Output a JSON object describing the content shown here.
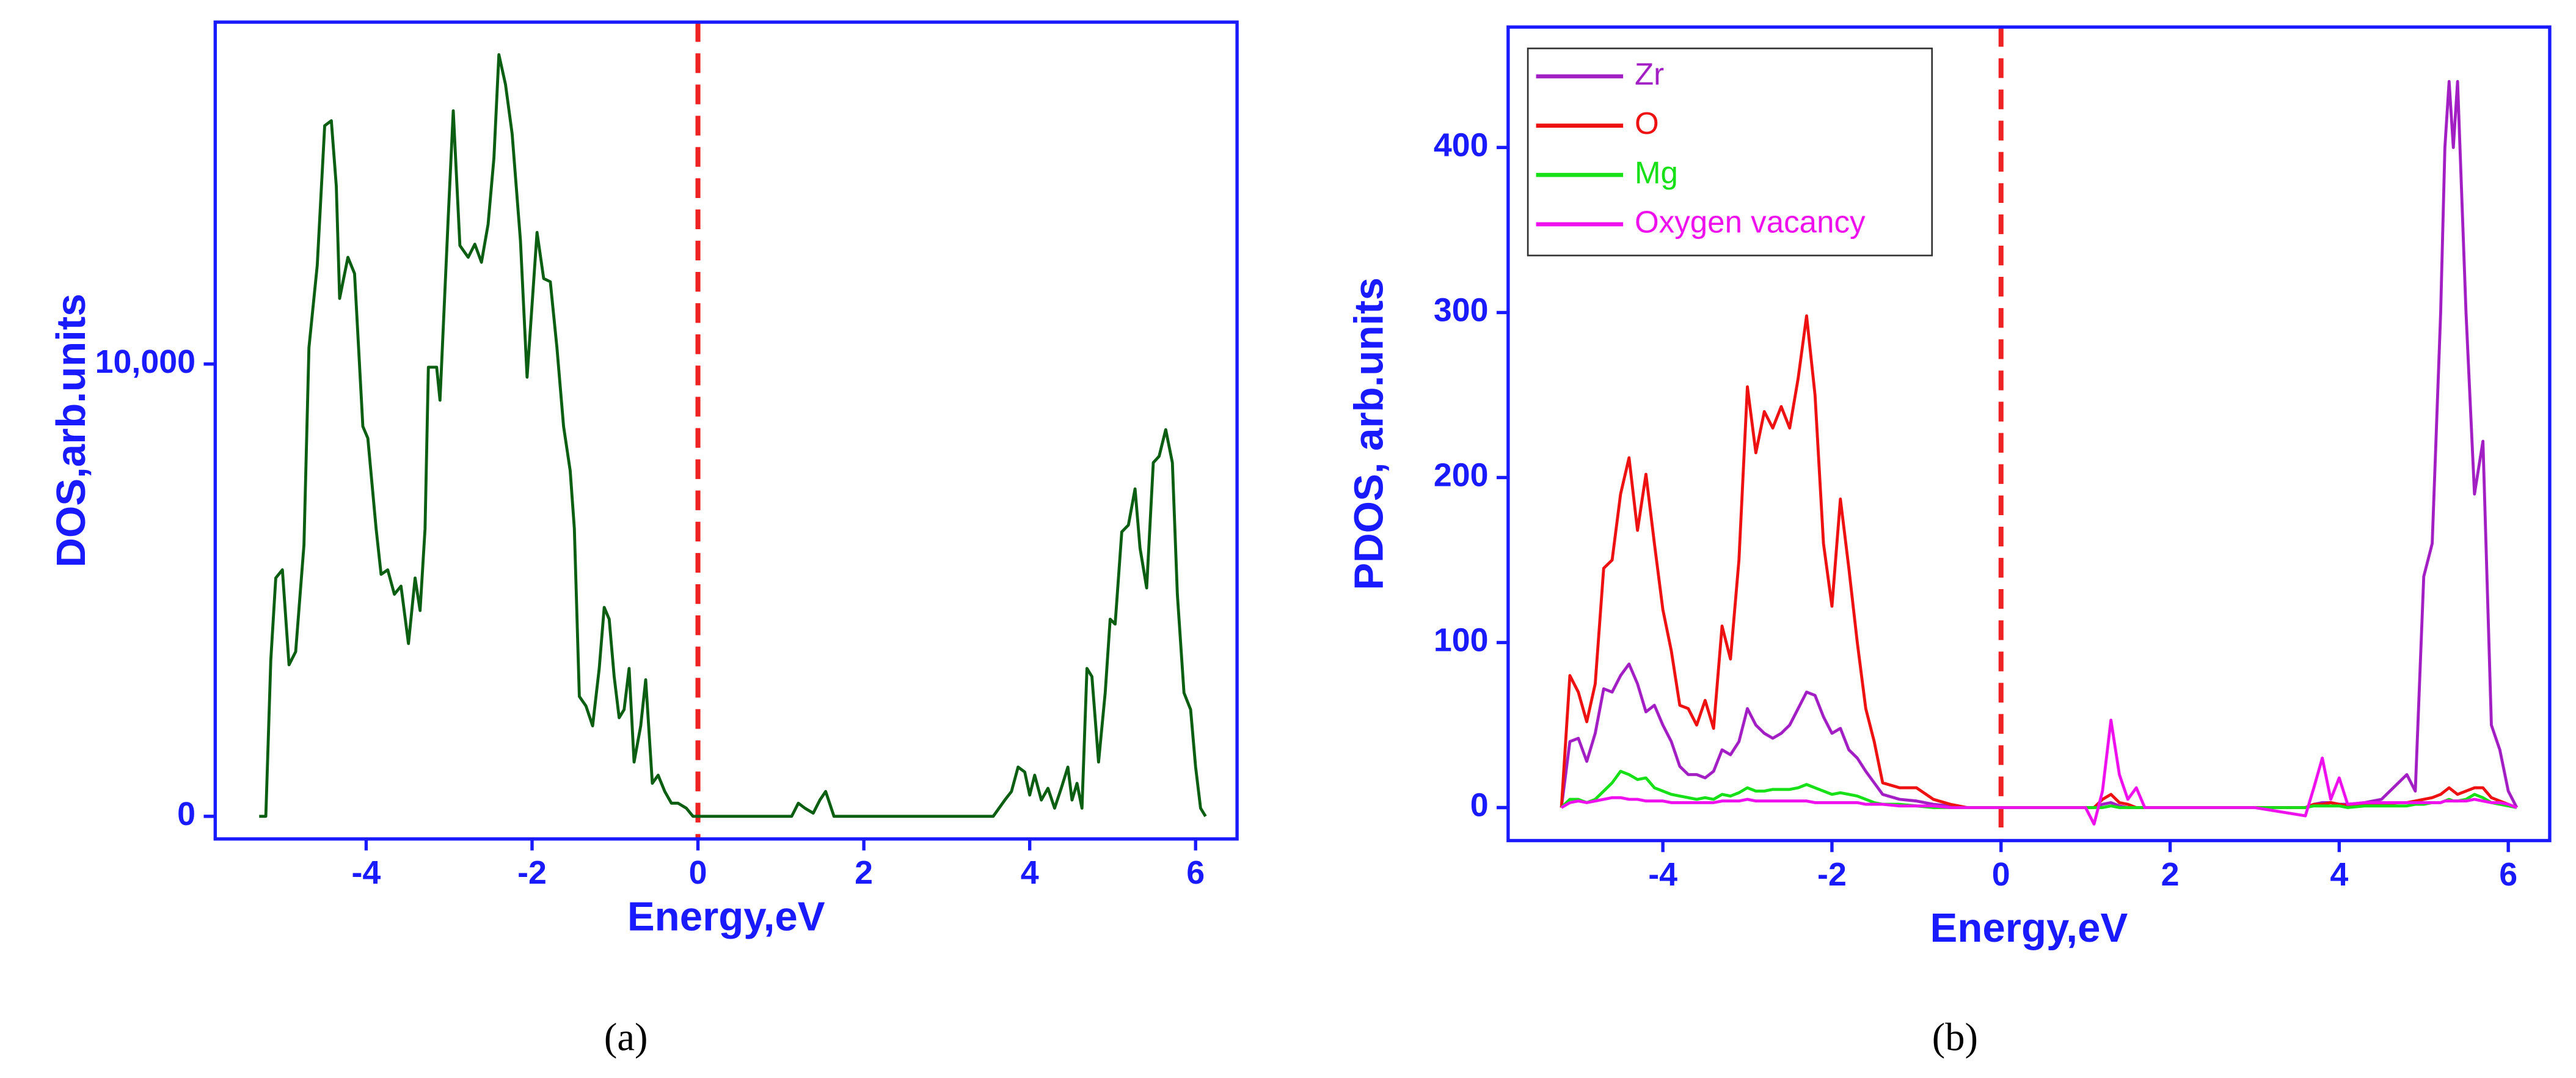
{
  "chart_data": [
    {
      "type": "line",
      "caption": "(a)",
      "xlabel": "Energy,eV",
      "ylabel": "DOS,arb.units",
      "color": "#0b5e12",
      "x": [
        -5.29,
        -5.21,
        -5.15,
        -5.09,
        -5.01,
        -4.93,
        -4.85,
        -4.75,
        -4.69,
        -4.59,
        -4.5,
        -4.42,
        -4.36,
        -4.32,
        -4.22,
        -4.14,
        -4.04,
        -3.98,
        -3.88,
        -3.82,
        -3.74,
        -3.66,
        -3.58,
        -3.49,
        -3.41,
        -3.35,
        -3.29,
        -3.25,
        -3.15,
        -3.11,
        -3.01,
        -2.95,
        -2.87,
        -2.77,
        -2.69,
        -2.61,
        -2.53,
        -2.46,
        -2.4,
        -2.32,
        -2.24,
        -2.14,
        -2.06,
        -1.94,
        -1.86,
        -1.78,
        -1.7,
        -1.62,
        -1.54,
        -1.49,
        -1.43,
        -1.35,
        -1.27,
        -1.19,
        -1.13,
        -1.07,
        -1.01,
        -0.95,
        -0.89,
        -0.83,
        -0.77,
        -0.69,
        -0.63,
        -0.55,
        -0.48,
        -0.4,
        -0.32,
        -0.24,
        -0.14,
        -0.06,
        1.13,
        1.21,
        1.29,
        1.39,
        1.47,
        1.54,
        1.64,
        3.56,
        3.7,
        3.78,
        3.86,
        3.94,
        4.0,
        4.06,
        4.14,
        4.22,
        4.3,
        4.38,
        4.46,
        4.51,
        4.57,
        4.63,
        4.69,
        4.75,
        4.83,
        4.91,
        4.97,
        5.03,
        5.11,
        5.19,
        5.27,
        5.33,
        5.41,
        5.49,
        5.56,
        5.64,
        5.72,
        5.78,
        5.86,
        5.94,
        6.0,
        6.06,
        6.12
      ],
      "values": [
        0,
        0,
        3450,
        5270,
        5450,
        3350,
        3640,
        6000,
        10360,
        12180,
        15270,
        15380,
        13930,
        11450,
        12360,
        12000,
        8620,
        8360,
        6360,
        5350,
        5450,
        4910,
        5090,
        3820,
        5270,
        4550,
        6360,
        9930,
        9930,
        9200,
        13270,
        15600,
        12620,
        12360,
        12650,
        12250,
        13090,
        14550,
        16840,
        16180,
        15090,
        12730,
        9710,
        12910,
        11890,
        11820,
        10360,
        8620,
        7640,
        6360,
        2650,
        2440,
        2000,
        3270,
        4620,
        4360,
        3090,
        2180,
        2360,
        3270,
        1200,
        2000,
        3020,
        730,
        910,
        550,
        290,
        290,
        180,
        0,
        0,
        290,
        180,
        70,
        360,
        550,
        0,
        0,
        360,
        550,
        1090,
        980,
        470,
        910,
        360,
        620,
        180,
        620,
        1090,
        360,
        730,
        180,
        3270,
        3090,
        1200,
        2730,
        4360,
        4250,
        6290,
        6440,
        7240,
        5930,
        5050,
        7820,
        7960,
        8550,
        7820,
        4910,
        2730,
        2360,
        1090,
        180,
        0
      ],
      "xlim": [
        -5.82,
        6.5
      ],
      "ylim": [
        -500,
        17560
      ],
      "xticks": [
        -4,
        -2,
        0,
        2,
        4,
        6
      ],
      "yticks": [
        0,
        {
          "value": 10000,
          "label": "10,000"
        }
      ],
      "vline": 0,
      "vline_color": "#ee2222"
    },
    {
      "type": "line",
      "caption": "(b)",
      "xlabel": "Energy,eV",
      "ylabel": "PDOS, arb.units",
      "legend": "upper left",
      "x": [
        -5.2,
        -5.1,
        -5.0,
        -4.9,
        -4.8,
        -4.7,
        -4.6,
        -4.5,
        -4.4,
        -4.3,
        -4.2,
        -4.1,
        -4.0,
        -3.9,
        -3.8,
        -3.7,
        -3.6,
        -3.5,
        -3.4,
        -3.3,
        -3.2,
        -3.1,
        -3.0,
        -2.9,
        -2.8,
        -2.7,
        -2.6,
        -2.5,
        -2.4,
        -2.3,
        -2.2,
        -2.1,
        -2.0,
        -1.9,
        -1.8,
        -1.7,
        -1.6,
        -1.5,
        -1.4,
        -1.2,
        -1.0,
        -0.8,
        -0.6,
        -0.4,
        0,
        0.5,
        1.0,
        1.1,
        1.2,
        1.3,
        1.4,
        1.5,
        1.6,
        1.7,
        2.0,
        3.0,
        3.6,
        3.7,
        3.8,
        3.9,
        4.0,
        4.1,
        4.3,
        4.5,
        4.7,
        4.8,
        4.9,
        5.0,
        5.1,
        5.2,
        5.25,
        5.3,
        5.35,
        5.4,
        5.5,
        5.6,
        5.7,
        5.8,
        5.9,
        6.0,
        6.1
      ],
      "series": [
        {
          "name": "Zr",
          "color": "#a21fc4",
          "values": [
            0,
            40,
            42,
            28,
            45,
            72,
            70,
            80,
            87,
            75,
            58,
            62,
            50,
            40,
            25,
            20,
            20,
            18,
            22,
            35,
            32,
            40,
            60,
            50,
            45,
            42,
            45,
            50,
            60,
            70,
            68,
            55,
            45,
            48,
            35,
            30,
            22,
            15,
            8,
            5,
            4,
            2,
            1,
            0,
            0,
            0,
            0,
            0,
            2,
            3,
            1,
            0,
            0,
            0,
            0,
            0,
            0,
            2,
            3,
            3,
            2,
            2,
            3,
            5,
            15,
            20,
            10,
            140,
            160,
            300,
            400,
            440,
            400,
            440,
            300,
            190,
            222,
            50,
            35,
            10,
            0
          ]
        },
        {
          "name": "O",
          "color": "#ee1111",
          "values": [
            0,
            80,
            70,
            52,
            75,
            145,
            150,
            190,
            212,
            168,
            202,
            160,
            120,
            95,
            62,
            60,
            50,
            65,
            48,
            110,
            90,
            150,
            255,
            215,
            240,
            230,
            243,
            230,
            260,
            298,
            250,
            160,
            122,
            187,
            145,
            100,
            60,
            40,
            15,
            12,
            12,
            5,
            2,
            0,
            0,
            0,
            0,
            0,
            5,
            8,
            3,
            2,
            0,
            0,
            0,
            0,
            0,
            2,
            2,
            3,
            2,
            1,
            2,
            2,
            3,
            3,
            4,
            5,
            6,
            8,
            10,
            12,
            10,
            8,
            10,
            12,
            12,
            6,
            4,
            2,
            0
          ]
        },
        {
          "name": "Mg",
          "color": "#18e018",
          "values": [
            0,
            5,
            5,
            3,
            5,
            10,
            15,
            22,
            20,
            17,
            18,
            12,
            10,
            8,
            7,
            6,
            5,
            6,
            5,
            8,
            7,
            9,
            12,
            10,
            10,
            11,
            11,
            11,
            12,
            14,
            12,
            10,
            8,
            9,
            8,
            7,
            5,
            3,
            2,
            2,
            1,
            0,
            0,
            0,
            0,
            0,
            0,
            0,
            0,
            1,
            0,
            0,
            0,
            0,
            0,
            0,
            0,
            1,
            1,
            1,
            1,
            0,
            1,
            1,
            1,
            1,
            2,
            2,
            3,
            3,
            4,
            5,
            4,
            4,
            5,
            8,
            6,
            3,
            2,
            1,
            0
          ]
        },
        {
          "name": "Oxygen vacancy",
          "color": "#ee11ee",
          "values": [
            0,
            3,
            4,
            3,
            4,
            5,
            6,
            6,
            5,
            5,
            4,
            4,
            4,
            3,
            3,
            3,
            3,
            3,
            3,
            4,
            4,
            4,
            5,
            4,
            4,
            4,
            4,
            4,
            4,
            4,
            3,
            3,
            3,
            3,
            3,
            3,
            2,
            2,
            2,
            1,
            1,
            1,
            0,
            0,
            0,
            0,
            0,
            -10,
            10,
            53,
            20,
            5,
            12,
            0,
            0,
            0,
            -5,
            12,
            30,
            5,
            18,
            2,
            3,
            3,
            3,
            3,
            3,
            3,
            3,
            3,
            4,
            4,
            4,
            4,
            4,
            5,
            4,
            3,
            3,
            2,
            0
          ]
        }
      ],
      "xlim": [
        -5.83,
        6.49
      ],
      "ylim": [
        -20,
        473
      ],
      "xticks": [
        -4,
        -2,
        0,
        2,
        4,
        6
      ],
      "yticks": [
        0,
        100,
        200,
        300,
        400
      ],
      "vline": 0,
      "vline_color": "#ee2222"
    }
  ]
}
